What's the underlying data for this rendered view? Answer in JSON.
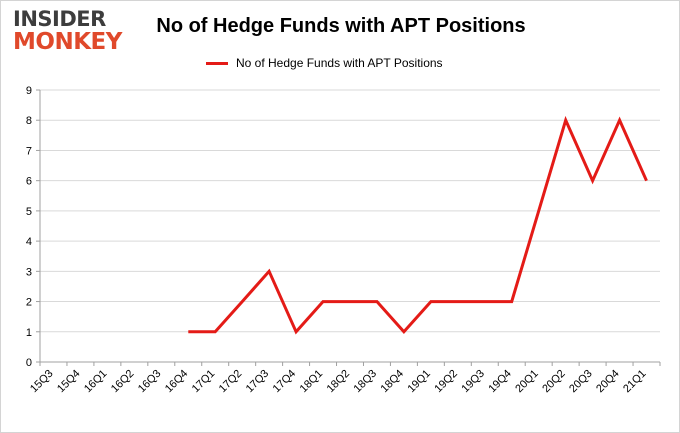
{
  "logo": {
    "line1": "INSIDER",
    "line2": "MONKEY"
  },
  "chart_data": {
    "type": "line",
    "title": "No of Hedge Funds with APT Positions",
    "xlabel": "",
    "ylabel": "",
    "categories": [
      "15Q3",
      "15Q4",
      "16Q1",
      "16Q2",
      "16Q3",
      "16Q4",
      "17Q1",
      "17Q2",
      "17Q3",
      "17Q4",
      "18Q1",
      "18Q2",
      "18Q3",
      "18Q4",
      "19Q1",
      "19Q2",
      "19Q3",
      "19Q4",
      "20Q1",
      "20Q2",
      "20Q3",
      "20Q4",
      "21Q1"
    ],
    "series": [
      {
        "name": "No of Hedge Funds with APT Positions",
        "color": "#e41b17",
        "values": [
          null,
          null,
          null,
          null,
          null,
          1,
          1,
          2,
          3,
          1,
          2,
          2,
          2,
          1,
          2,
          2,
          2,
          2,
          5,
          8,
          6,
          8,
          6
        ]
      }
    ],
    "ylim": [
      0,
      9
    ],
    "yticks": [
      "0",
      "1",
      "2",
      "3",
      "4",
      "5",
      "6",
      "7",
      "8",
      "9"
    ],
    "grid": true,
    "legend_position": "top"
  }
}
